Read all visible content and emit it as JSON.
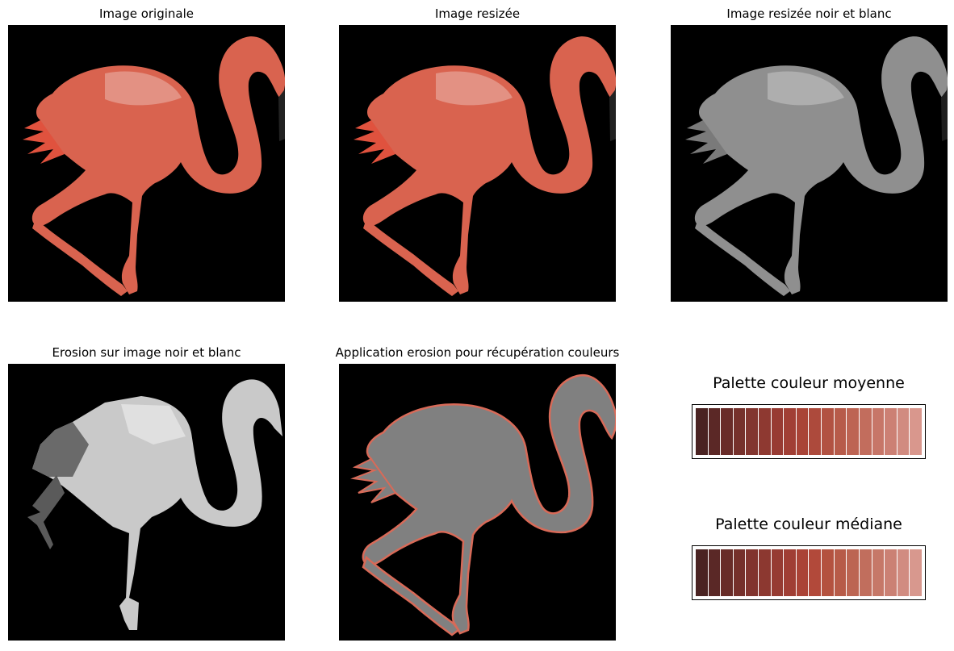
{
  "panels": {
    "original": {
      "title": "Image originale"
    },
    "resized": {
      "title": "Image resizée"
    },
    "bw": {
      "title": "Image resizée noir et blanc"
    },
    "erosion": {
      "title": "Erosion sur image noir et blanc"
    },
    "recovery": {
      "title": "Application erosion pour récupération couleurs"
    }
  },
  "palettes": {
    "mean": {
      "title": "Palette couleur moyenne",
      "colors": [
        "#4a2322",
        "#5b2826",
        "#692c29",
        "#76312c",
        "#82352f",
        "#8e3931",
        "#983b33",
        "#a13f35",
        "#a94437",
        "#ad4a3c",
        "#b25242",
        "#b75b4a",
        "#bd6453",
        "#c26d5d",
        "#c77668",
        "#cc8074",
        "#d18b80",
        "#d9978d"
      ]
    },
    "median": {
      "title": "Palette couleur médiane",
      "colors": [
        "#4a2322",
        "#5a2826",
        "#682c28",
        "#75302b",
        "#81342e",
        "#8c3830",
        "#963b32",
        "#a03e34",
        "#aa4336",
        "#b2493a",
        "#b4523f",
        "#b75b48",
        "#bc6552",
        "#c16e5d",
        "#c67868",
        "#cb8174",
        "#d18c81",
        "#d8988e"
      ]
    }
  },
  "colors": {
    "background": "#000000",
    "flamingo_body": "#e0604a",
    "flamingo_light": "#e79a8c",
    "grey_body": "#9a9a9a",
    "erosion_fill": "#808080",
    "erosion_outline": "#d86a58"
  }
}
